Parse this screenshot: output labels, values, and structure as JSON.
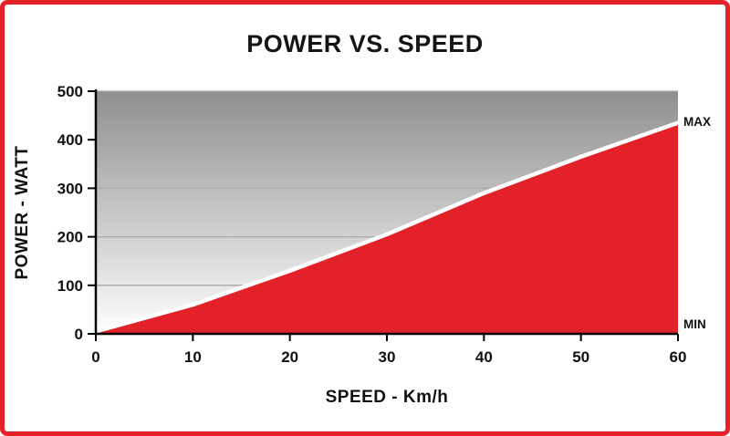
{
  "title": "POWER VS. SPEED",
  "x_axis_label": "SPEED - Km/h",
  "y_axis_label": "POWER - WATT",
  "max_label": "MAX",
  "min_label": "MIN",
  "colors": {
    "area_fill": "#e32128",
    "area_edge": "#ffffff",
    "frame_border": "#e32128",
    "axis": "#000000",
    "gridline": "#a8a8a8",
    "plot_bg_top": "#8f8f8f",
    "plot_bg_bottom": "#fefefe",
    "text": "#111111"
  },
  "chart_data": {
    "type": "area",
    "title": "POWER VS. SPEED",
    "xlabel": "SPEED - Km/h",
    "ylabel": "POWER - WATT",
    "x": [
      0,
      10,
      20,
      30,
      40,
      50,
      60
    ],
    "values": [
      5,
      60,
      130,
      205,
      290,
      365,
      435
    ],
    "xlim": [
      0,
      60
    ],
    "ylim": [
      0,
      500
    ],
    "x_ticks": [
      0,
      10,
      20,
      30,
      40,
      50,
      60
    ],
    "y_ticks": [
      0,
      100,
      200,
      300,
      400,
      500
    ],
    "grid": true,
    "legend": "none",
    "annotations": [
      {
        "label": "MAX",
        "x": 60,
        "y": 435,
        "position": "right-of-plot"
      },
      {
        "label": "MIN",
        "x": 60,
        "y": 0,
        "position": "right-of-plot"
      }
    ]
  }
}
